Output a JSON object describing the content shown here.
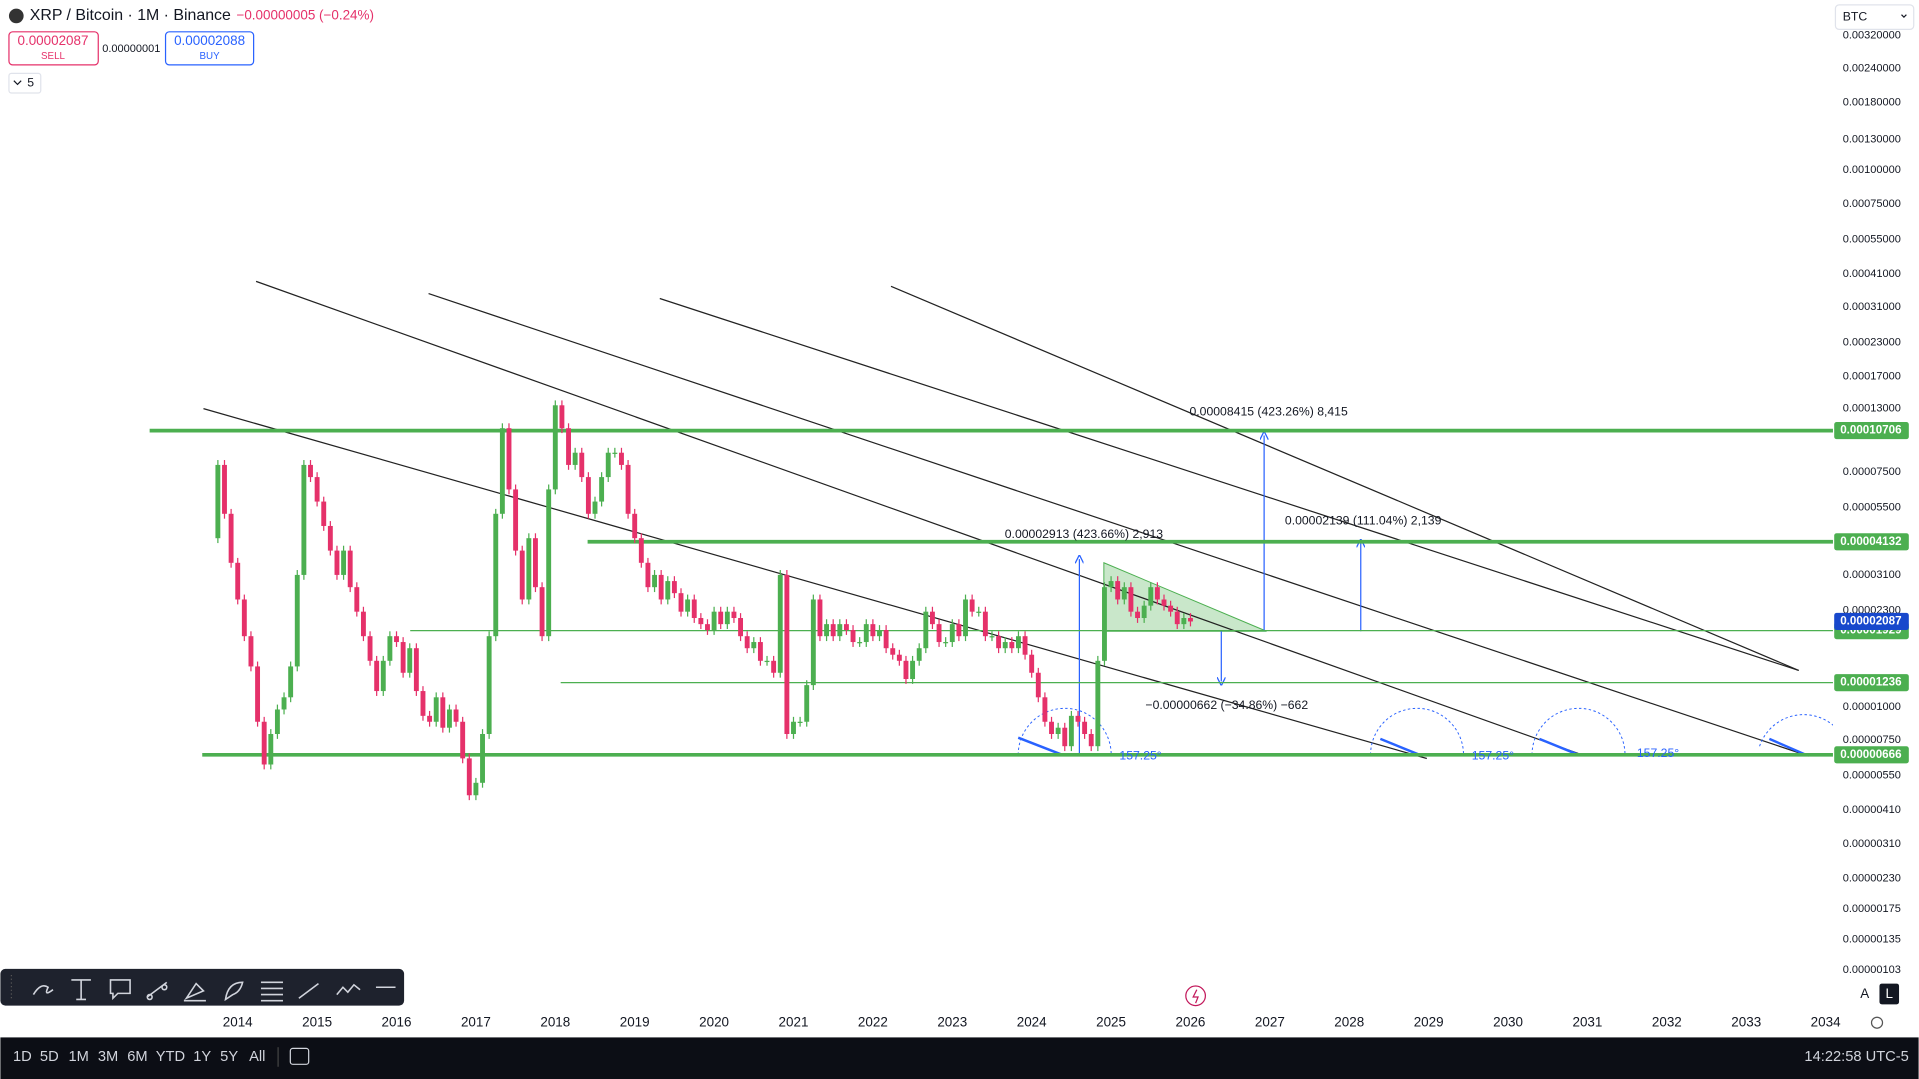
{
  "header": {
    "symbol": "XRP / Bitcoin · 1M · Binance",
    "change": "−0.00000005 (−0.24%)",
    "sell_price": "0.00002087",
    "sell_label": "SELL",
    "spread": "0.00000001",
    "buy_price": "0.00002088",
    "buy_label": "BUY",
    "layers": "5",
    "currency": "BTC"
  },
  "price_axis": {
    "labels": [
      "0.00320000",
      "0.00240000",
      "0.00180000",
      "0.00130000",
      "0.00100000",
      "0.00075000",
      "0.00055000",
      "0.00041000",
      "0.00031000",
      "0.00023000",
      "0.00017000",
      "0.00013000",
      "0.00007500",
      "0.00005500",
      "0.00003100",
      "0.00002300",
      "0.00001000",
      "0.00000750",
      "0.00000550",
      "0.00000410",
      "0.00000310",
      "0.00000230",
      "0.00000175",
      "0.00000135",
      "0.00000103"
    ]
  },
  "time_axis": {
    "labels": [
      "2014",
      "2015",
      "2016",
      "2017",
      "2018",
      "2019",
      "2020",
      "2021",
      "2022",
      "2023",
      "2024",
      "2025",
      "2026",
      "2027",
      "2028",
      "2029",
      "2030",
      "2031",
      "2032",
      "2033",
      "2034"
    ]
  },
  "candles": {
    "up_color": "#4caf50",
    "down_color": "#e5316a",
    "close": [
      4.26e-05,
      7.98e-05,
      5.25e-05,
      3.45e-05,
      2.52e-05,
      1.84e-05,
      1.42e-05,
      8.84e-06,
      6.13e-06,
      7.96e-06,
      9.82e-06,
      1.09e-05,
      1.42e-05,
      3.11e-05,
      7.98e-05,
      7.19e-05,
      5.83e-05,
      4.73e-05,
      3.83e-05,
      3.11e-05,
      3.83e-05,
      2.8e-05,
      2.27e-05,
      1.84e-05,
      1.49e-05,
      1.15e-05,
      1.49e-05,
      1.84e-05,
      1.75e-05,
      1.345e-05,
      1.66e-05,
      1.15e-05,
      9.3e-06,
      8.84e-06,
      1.09e-05,
      8.4e-06,
      9.82e-06,
      8.84e-06,
      6.46e-06,
      4.71e-06,
      5.24e-06,
      7.96e-06,
      1.84e-05,
      5.25e-05,
      0.0001093,
      6.47e-05,
      3.83e-05,
      2.52e-05,
      4.26e-05,
      2.8e-05,
      1.84e-05,
      6.47e-05,
      0.000133,
      0.0001093,
      7.98e-05,
      8.86e-05,
      7.19e-05,
      5.25e-05,
      5.83e-05,
      7.19e-05,
      8.86e-05,
      8.86e-05,
      7.98e-05,
      5.25e-05,
      4.26e-05,
      3.45e-05,
      2.8e-05,
      3.11e-05,
      2.52e-05,
      2.95e-05,
      2.66e-05,
      2.27e-05,
      2.52e-05,
      2.15e-05,
      2.04e-05,
      1.94e-05,
      2.27e-05,
      2.04e-05,
      2.27e-05,
      2.15e-05,
      1.84e-05,
      1.66e-05,
      1.75e-05,
      1.49e-05,
      1.49e-05,
      1.345e-05,
      3.11e-05,
      7.96e-06,
      8.84e-06,
      8.84e-06,
      1.21e-05,
      2.52e-05,
      1.84e-05,
      2.04e-05,
      1.84e-05,
      2.04e-05,
      1.94e-05,
      1.75e-05,
      1.75e-05,
      2.04e-05,
      1.84e-05,
      1.94e-05,
      1.66e-05,
      1.57e-05,
      1.49e-05,
      1.275e-05,
      1.49e-05,
      1.66e-05,
      2.27e-05,
      2.04e-05,
      1.75e-05,
      1.75e-05,
      2.04e-05,
      1.84e-05,
      2.52e-05,
      2.27e-05,
      2.27e-05,
      1.84e-05,
      1.84e-05,
      1.66e-05,
      1.75e-05,
      1.66e-05,
      1.84e-05,
      1.57e-05,
      1.345e-05,
      1.09e-05,
      8.84e-06,
      7.96e-06,
      8.4e-06,
      7.17e-06,
      9.3e-06,
      8.84e-06,
      7.96e-06,
      7.17e-06,
      1.49e-05,
      2.8e-05,
      2.95e-05,
      2.52e-05,
      2.8e-05,
      2.27e-05,
      2.15e-05,
      2.39e-05,
      2.8e-05,
      2.52e-05,
      2.39e-05,
      2.27e-05,
      2.04e-05,
      2.15e-05,
      2.087e-05
    ]
  },
  "levels": [
    0.00010706,
    4.132e-05,
    1.929e-05,
    1.236e-05,
    6.66e-06
  ],
  "level_color": "#4caf50",
  "current_price": 2.087e-05,
  "current_color": "#1848cc",
  "annotations": [
    "0.00008415 (423.26%) 8,415",
    "0.00002139 (111.04%) 2,139",
    "0.00002913 (423.66%) 2,913",
    "−0.00000662 (−34.86%) −662"
  ],
  "angles": [
    "157.25°",
    "157.25°",
    "157.25°"
  ],
  "bottom_bar": {
    "ranges": [
      "1D",
      "5D",
      "1M",
      "3M",
      "6M",
      "YTD",
      "1Y",
      "5Y",
      "All"
    ],
    "clock": "14:22:58 UTC-5"
  }
}
